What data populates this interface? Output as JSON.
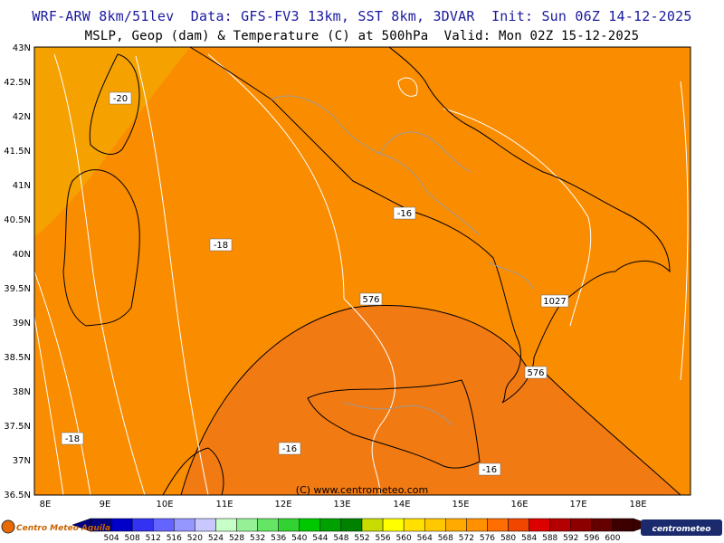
{
  "header": {
    "line1": "WRF-ARW 8km/51lev  Data: GFS-FV3 13km, SST 8km, 3DVAR  Init: Sun 06Z 14-12-2025",
    "line2": "MSLP, Geop (dam) & Temperature (C) at 500hPa  Valid: Mon 02Z 15-12-2025"
  },
  "map": {
    "lat_labels": [
      "43N",
      "42.5N",
      "42N",
      "41.5N",
      "41N",
      "40.5N",
      "40N",
      "39.5N",
      "39N",
      "38.5N",
      "38N",
      "37.5N",
      "37N",
      "36.5N"
    ],
    "lon_labels": [
      "8E",
      "9E",
      "10E",
      "11E",
      "12E",
      "13E",
      "14E",
      "15E",
      "16E",
      "17E",
      "18E"
    ],
    "contour_labels": [
      "-20",
      "-18",
      "-16",
      "-18",
      "-16",
      "-16",
      "576",
      "576",
      "1027"
    ],
    "copyright": "(C) www.centrometeo.com",
    "colors": {
      "temp_minus20": "#f5a100",
      "temp_minus18": "#fa8c00",
      "geop_576_area": "#f27a12",
      "coast": "#000000",
      "borders": "#9a9a9a",
      "isotherm": "#ffffff"
    }
  },
  "scale": {
    "values": [
      "504",
      "508",
      "512",
      "516",
      "520",
      "524",
      "528",
      "532",
      "536",
      "540",
      "544",
      "548",
      "552",
      "556",
      "560",
      "564",
      "568",
      "572",
      "576",
      "580",
      "584",
      "588",
      "592",
      "596",
      "600"
    ],
    "colors": [
      "#000080",
      "#0000c8",
      "#3232f0",
      "#6464ff",
      "#9696ff",
      "#c8c8ff",
      "#c8ffc8",
      "#96f096",
      "#64e664",
      "#32d232",
      "#00c800",
      "#00a000",
      "#008200",
      "#c8dc00",
      "#ffff00",
      "#ffe000",
      "#ffc800",
      "#ffaa00",
      "#ff9100",
      "#ff6e00",
      "#f04600",
      "#dc0000",
      "#b40000",
      "#8c0000",
      "#640000",
      "#3c0000"
    ]
  },
  "logos": {
    "left": "Centro Meteo Aquila",
    "right": "centrometeo"
  }
}
